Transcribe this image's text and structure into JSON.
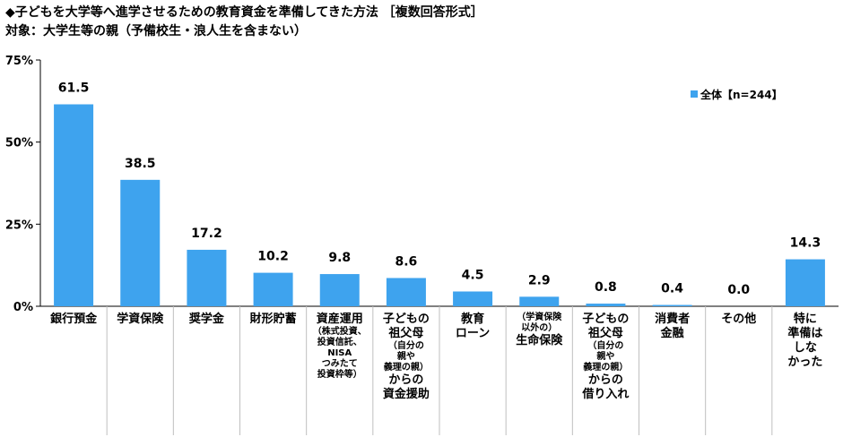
{
  "title": "◆子どもを大学等へ進学させるための教育資金を準備してきた方法 ［複数回答形式］",
  "subtitle": "対象：大学生等の親（予備校生・浪人生を含まない）",
  "colors": {
    "bar": "#3ea3ee",
    "grid": "#bfbfbf",
    "divider": "#bfbfbf"
  },
  "chart_data": {
    "type": "bar",
    "title": "◆子どもを大学等へ進学させるための教育資金を準備してきた方法 ［複数回答形式］",
    "subtitle": "対象：大学生等の親（予備校生・浪人生を含まない）",
    "ylim": [
      0,
      75
    ],
    "yticks": [
      "0%",
      "25%",
      "50%",
      "75%"
    ],
    "grid": false,
    "legend_position": "top-right",
    "categories": [
      "銀行預金",
      "学資保険",
      "奨学金",
      "財形貯蓄",
      "資産運用（株式投資、投資信託、NISA つみたて投資枠等）",
      "子どもの祖父母（自分の親や義理の親）からの資金援助",
      "教育ローン",
      "（学資保険以外の）生命保険",
      "子どもの祖父母（自分の親や義理の親）からの借り入れ",
      "消費者金融",
      "その他",
      "特に準備はしなかった"
    ],
    "series": [
      {
        "name": "全体【n=244】",
        "values": [
          61.5,
          38.5,
          17.2,
          10.2,
          9.8,
          8.6,
          4.5,
          2.9,
          0.8,
          0.4,
          0.0,
          14.3
        ]
      }
    ],
    "value_labels": [
      "61.5",
      "38.5",
      "17.2",
      "10.2",
      "9.8",
      "8.6",
      "4.5",
      "2.9",
      "0.8",
      "0.4",
      "0.0",
      "14.3"
    ]
  },
  "category_label_lines": [
    {
      "main": [
        "銀行預金"
      ]
    },
    {
      "main": [
        "学資保険"
      ]
    },
    {
      "main": [
        "奨学金"
      ]
    },
    {
      "main": [
        "財形貯蓄"
      ]
    },
    {
      "main": [
        "資産運用"
      ],
      "small": [
        "（株式投資、",
        "投資信託、",
        "NISA",
        "つみたて",
        "投資枠等）"
      ]
    },
    {
      "main": [
        "子どもの",
        "祖父母"
      ],
      "small": [
        "（自分の",
        "親や",
        "義理の親）"
      ],
      "main2": [
        "からの",
        "資金援助"
      ]
    },
    {
      "main": [
        "教育",
        "ローン"
      ]
    },
    {
      "small": [
        "（学資保険",
        "以外の）"
      ],
      "main2": [
        "生命保険"
      ]
    },
    {
      "main": [
        "子どもの",
        "祖父母"
      ],
      "small": [
        "（自分の",
        "親や",
        "義理の親）"
      ],
      "main2": [
        "からの",
        "借り入れ"
      ]
    },
    {
      "main": [
        "消費者",
        "金融"
      ]
    },
    {
      "main": [
        "その他"
      ]
    },
    {
      "main": [
        "特に",
        "準備は",
        "しな",
        "かった"
      ]
    }
  ],
  "legend": {
    "label": "全体【n=244】"
  }
}
